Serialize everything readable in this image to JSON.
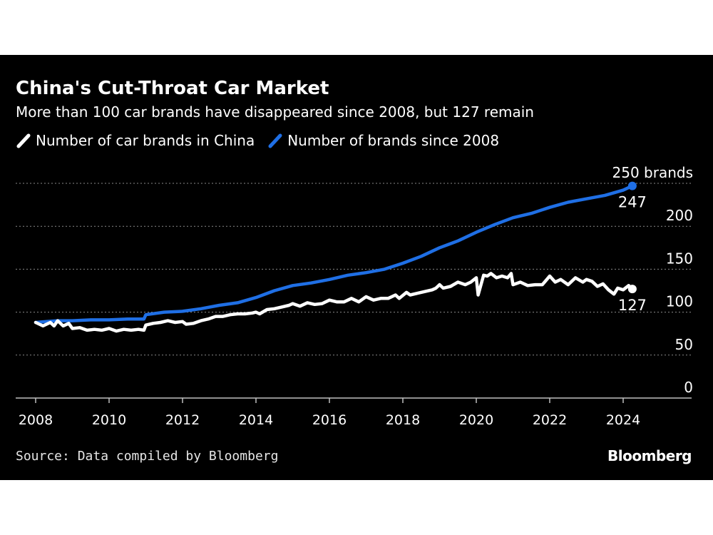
{
  "header": {
    "title": "China's Cut-Throat Car Market",
    "subtitle": "More than 100 car brands have disappeared since 2008, but 127 remain"
  },
  "footer": {
    "source": "Source: Data compiled by Bloomberg",
    "brand": "Bloomberg"
  },
  "colors": {
    "background": "#000000",
    "series_white": "#ffffff",
    "series_blue": "#1f6fe5",
    "grid": "#8a8a8a",
    "text": "#ffffff"
  },
  "chart_data": {
    "type": "line",
    "title": "China's Cut-Throat Car Market",
    "subtitle": "More than 100 car brands have disappeared since 2008, but 127 remain",
    "xlabel": "",
    "ylabel": "",
    "xlim": [
      2008,
      2025.8
    ],
    "ylim": [
      0,
      250
    ],
    "x_ticks": [
      "2008",
      "2010",
      "2012",
      "2014",
      "2016",
      "2018",
      "2020",
      "2022",
      "2024"
    ],
    "y_ticks": [
      "0",
      "50",
      "100",
      "150",
      "200",
      "250 brands"
    ],
    "y_tick_values": [
      0,
      50,
      100,
      150,
      200,
      250
    ],
    "grid": true,
    "legend_position": "top-left",
    "series": [
      {
        "name": "Number of car brands in China",
        "color": "#ffffff",
        "end_label": "127",
        "points": [
          [
            2008.0,
            88
          ],
          [
            2008.2,
            84
          ],
          [
            2008.4,
            88
          ],
          [
            2008.5,
            84
          ],
          [
            2008.6,
            90
          ],
          [
            2008.75,
            84
          ],
          [
            2008.9,
            87
          ],
          [
            2009.0,
            81
          ],
          [
            2009.2,
            82
          ],
          [
            2009.4,
            79
          ],
          [
            2009.6,
            80
          ],
          [
            2009.8,
            79
          ],
          [
            2010.0,
            81
          ],
          [
            2010.2,
            78
          ],
          [
            2010.4,
            80
          ],
          [
            2010.6,
            79
          ],
          [
            2010.8,
            80
          ],
          [
            2010.95,
            79
          ],
          [
            2011.0,
            85
          ],
          [
            2011.2,
            87
          ],
          [
            2011.4,
            88
          ],
          [
            2011.6,
            90
          ],
          [
            2011.8,
            88
          ],
          [
            2012.0,
            89
          ],
          [
            2012.1,
            86
          ],
          [
            2012.3,
            87
          ],
          [
            2012.5,
            90
          ],
          [
            2012.7,
            92
          ],
          [
            2012.9,
            95
          ],
          [
            2013.1,
            95
          ],
          [
            2013.3,
            97
          ],
          [
            2013.5,
            98
          ],
          [
            2013.7,
            98
          ],
          [
            2013.9,
            99
          ],
          [
            2014.0,
            100
          ],
          [
            2014.1,
            98
          ],
          [
            2014.3,
            103
          ],
          [
            2014.5,
            104
          ],
          [
            2014.7,
            106
          ],
          [
            2014.9,
            108
          ],
          [
            2015.0,
            110
          ],
          [
            2015.2,
            107
          ],
          [
            2015.4,
            111
          ],
          [
            2015.6,
            109
          ],
          [
            2015.8,
            110
          ],
          [
            2016.0,
            114
          ],
          [
            2016.2,
            112
          ],
          [
            2016.4,
            112
          ],
          [
            2016.6,
            116
          ],
          [
            2016.8,
            112
          ],
          [
            2017.0,
            118
          ],
          [
            2017.2,
            114
          ],
          [
            2017.4,
            116
          ],
          [
            2017.6,
            116
          ],
          [
            2017.8,
            120
          ],
          [
            2017.9,
            116
          ],
          [
            2018.1,
            123
          ],
          [
            2018.2,
            120
          ],
          [
            2018.4,
            122
          ],
          [
            2018.6,
            124
          ],
          [
            2018.8,
            126
          ],
          [
            2018.9,
            128
          ],
          [
            2019.0,
            132
          ],
          [
            2019.1,
            128
          ],
          [
            2019.3,
            130
          ],
          [
            2019.5,
            135
          ],
          [
            2019.7,
            132
          ],
          [
            2019.85,
            135
          ],
          [
            2020.0,
            140
          ],
          [
            2020.05,
            120
          ],
          [
            2020.2,
            143
          ],
          [
            2020.3,
            142
          ],
          [
            2020.4,
            145
          ],
          [
            2020.55,
            140
          ],
          [
            2020.7,
            142
          ],
          [
            2020.85,
            140
          ],
          [
            2020.95,
            145
          ],
          [
            2021.0,
            132
          ],
          [
            2021.2,
            135
          ],
          [
            2021.4,
            131
          ],
          [
            2021.6,
            132
          ],
          [
            2021.8,
            132
          ],
          [
            2022.0,
            142
          ],
          [
            2022.15,
            135
          ],
          [
            2022.3,
            138
          ],
          [
            2022.5,
            132
          ],
          [
            2022.7,
            140
          ],
          [
            2022.9,
            135
          ],
          [
            2023.0,
            138
          ],
          [
            2023.15,
            136
          ],
          [
            2023.3,
            130
          ],
          [
            2023.45,
            133
          ],
          [
            2023.6,
            126
          ],
          [
            2023.75,
            121
          ],
          [
            2023.85,
            128
          ],
          [
            2024.0,
            126
          ],
          [
            2024.15,
            131
          ],
          [
            2024.25,
            127
          ]
        ]
      },
      {
        "name": "Number of brands since 2008",
        "color": "#1f6fe5",
        "end_label": "247",
        "points": [
          [
            2008.0,
            88
          ],
          [
            2008.3,
            89
          ],
          [
            2008.6,
            90
          ],
          [
            2009.0,
            90
          ],
          [
            2009.5,
            91
          ],
          [
            2010.0,
            91
          ],
          [
            2010.5,
            92
          ],
          [
            2010.95,
            92
          ],
          [
            2011.0,
            97
          ],
          [
            2011.5,
            100
          ],
          [
            2012.0,
            101
          ],
          [
            2012.5,
            104
          ],
          [
            2013.0,
            108
          ],
          [
            2013.5,
            111
          ],
          [
            2014.0,
            117
          ],
          [
            2014.5,
            125
          ],
          [
            2015.0,
            131
          ],
          [
            2015.5,
            134
          ],
          [
            2016.0,
            138
          ],
          [
            2016.5,
            143
          ],
          [
            2017.0,
            146
          ],
          [
            2017.5,
            150
          ],
          [
            2018.0,
            157
          ],
          [
            2018.5,
            165
          ],
          [
            2019.0,
            175
          ],
          [
            2019.5,
            183
          ],
          [
            2020.0,
            193
          ],
          [
            2020.5,
            202
          ],
          [
            2021.0,
            210
          ],
          [
            2021.5,
            215
          ],
          [
            2022.0,
            222
          ],
          [
            2022.5,
            228
          ],
          [
            2023.0,
            232
          ],
          [
            2023.5,
            236
          ],
          [
            2024.0,
            242
          ],
          [
            2024.25,
            247
          ]
        ]
      }
    ]
  }
}
